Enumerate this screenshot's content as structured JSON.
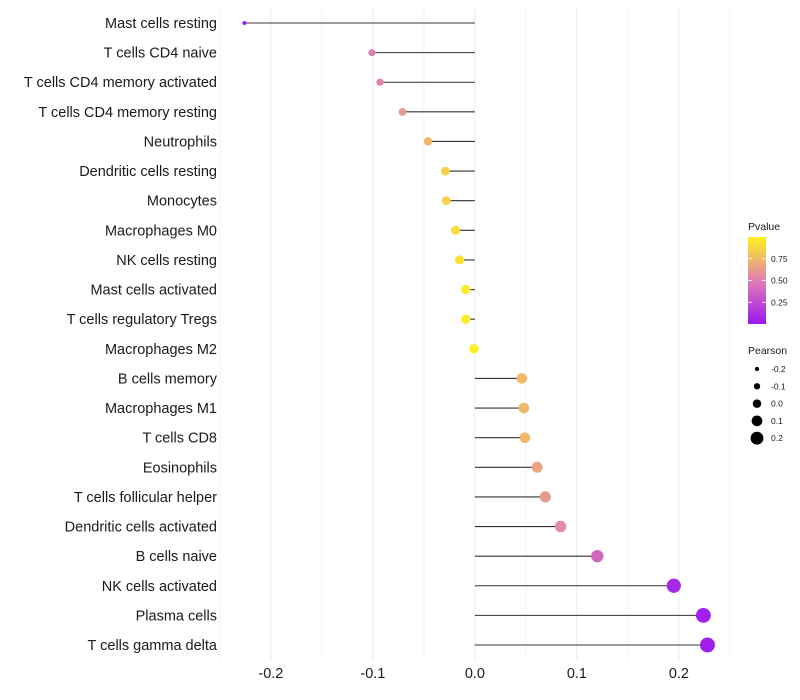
{
  "chart_data": {
    "type": "scatter",
    "subtype": "lollipop",
    "title": "",
    "xlabel": "",
    "ylabel": "",
    "xlim": [
      -0.245,
      0.255
    ],
    "x_ticks": [
      -0.2,
      -0.1,
      0.0,
      0.1,
      0.2
    ],
    "x_tick_labels": [
      "-0.2",
      "-0.1",
      "0.0",
      "0.1",
      "0.2"
    ],
    "grid": true,
    "categories": [
      "Mast cells resting",
      "T cells CD4 naive",
      "T cells CD4 memory activated",
      "T cells CD4 memory resting",
      "Neutrophils",
      "Dendritic cells resting",
      "Monocytes",
      "Macrophages M0",
      "NK cells resting",
      "Mast cells activated",
      "T cells regulatory  Tregs",
      "Macrophages M2",
      "B cells memory",
      "Macrophages M1",
      "T cells CD8",
      "Eosinophils",
      "T cells follicular helper",
      "Dendritic cells activated",
      "B cells naive",
      "NK cells activated",
      "Plasma cells",
      "T cells gamma delta"
    ],
    "values": [
      -0.226,
      -0.101,
      -0.093,
      -0.071,
      -0.046,
      -0.029,
      -0.028,
      -0.019,
      -0.015,
      -0.009,
      -0.009,
      -0.001,
      0.046,
      0.048,
      0.049,
      0.061,
      0.069,
      0.084,
      0.12,
      0.195,
      0.224,
      0.228
    ],
    "pvalues": [
      0.01,
      0.5,
      0.52,
      0.62,
      0.74,
      0.85,
      0.86,
      0.9,
      0.93,
      0.96,
      0.96,
      0.99,
      0.75,
      0.74,
      0.74,
      0.66,
      0.62,
      0.55,
      0.38,
      0.08,
      0.04,
      0.03
    ],
    "legend": {
      "color": {
        "title": "Pvalue",
        "ticks": [
          0.25,
          0.5,
          0.75
        ],
        "tick_labels": [
          "0.25",
          "0.50",
          "0.75"
        ],
        "range": [
          0.0,
          1.0
        ],
        "low_color": "#9b18f2",
        "mid_color": "#e07fb0",
        "high_color": "#fff31e",
        "placement": "right"
      },
      "size": {
        "title": "Pearson",
        "values": [
          -0.2,
          -0.1,
          0.0,
          0.1,
          0.2
        ],
        "labels": [
          "-0.2",
          "-0.1",
          "0.0",
          "0.1",
          "0.2"
        ],
        "placement": "right"
      }
    }
  }
}
